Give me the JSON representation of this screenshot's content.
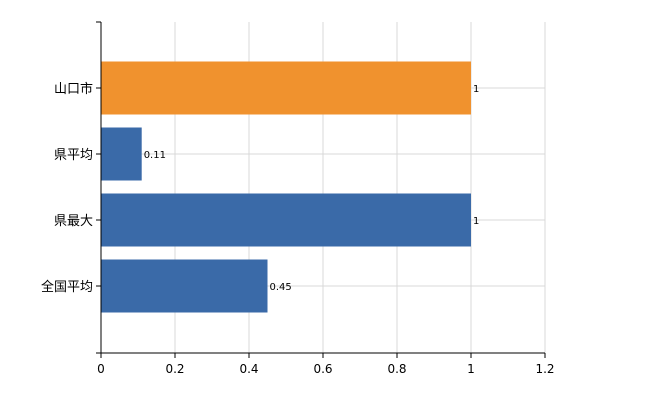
{
  "chart_data": {
    "type": "bar",
    "orientation": "horizontal",
    "categories": [
      "山口市",
      "県平均",
      "県最大",
      "全国平均"
    ],
    "values": [
      1,
      0.11,
      1,
      0.45
    ],
    "data_labels": [
      "1",
      "0.11",
      "1",
      "0.45"
    ],
    "bar_colors": [
      "#f0922e",
      "#3a6aa8",
      "#3a6aa8",
      "#3a6aa8"
    ],
    "xlim": [
      0,
      1.2
    ],
    "xticks": [
      0,
      0.2,
      0.4,
      0.6,
      0.8,
      1,
      1.2
    ],
    "xtick_labels": [
      "0",
      "0.2",
      "0.4",
      "0.6",
      "0.8",
      "1",
      "1.2"
    ],
    "grid": true,
    "legend": "none"
  }
}
